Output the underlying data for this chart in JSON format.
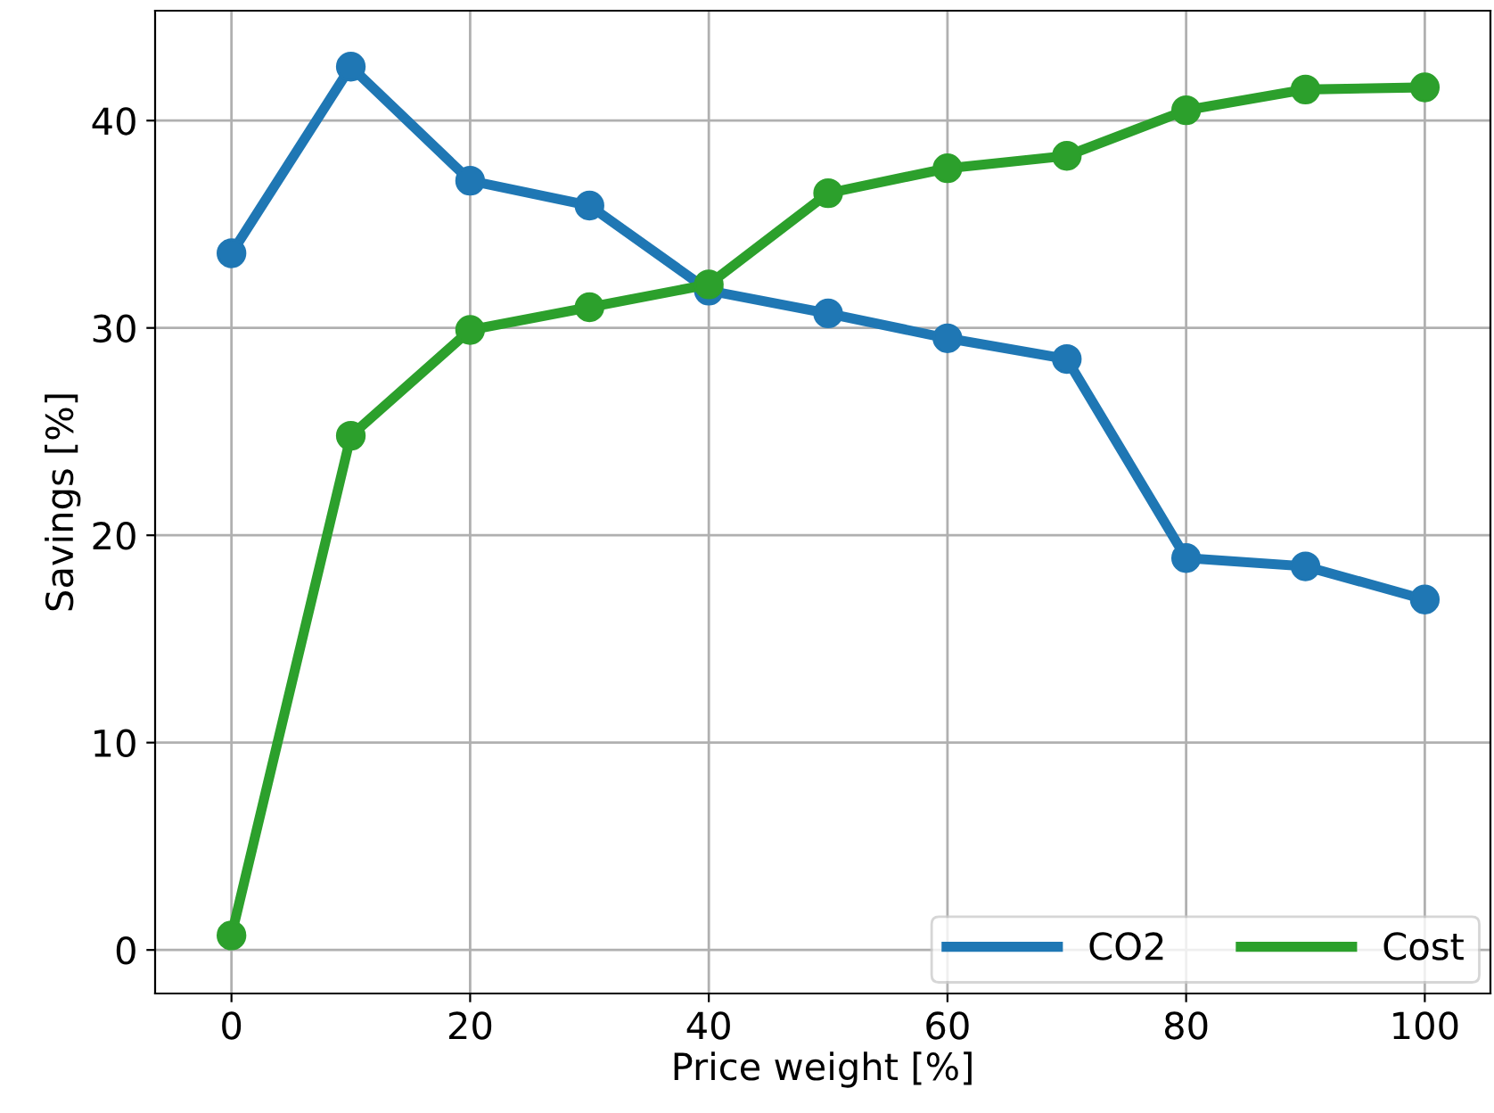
{
  "chart_data": {
    "type": "line",
    "xlabel": "Price weight [%]",
    "ylabel": "Savings [%]",
    "x": [
      0,
      10,
      20,
      30,
      40,
      50,
      60,
      70,
      80,
      90,
      100
    ],
    "series": [
      {
        "name": "CO2",
        "color": "#1f77b4",
        "values": [
          33.6,
          42.6,
          37.1,
          35.9,
          31.8,
          30.7,
          29.5,
          28.5,
          18.9,
          18.5,
          16.9
        ]
      },
      {
        "name": "Cost",
        "color": "#2ca02c",
        "values": [
          0.7,
          24.8,
          29.9,
          31.0,
          32.1,
          36.5,
          37.7,
          38.3,
          40.5,
          41.5,
          41.6
        ]
      }
    ],
    "xlim": [
      -6.4,
      105.5
    ],
    "ylim": [
      -2.1,
      45.3
    ],
    "xticks": [
      0,
      20,
      40,
      60,
      80,
      100
    ],
    "yticks": [
      0,
      10,
      20,
      30,
      40
    ],
    "grid": true,
    "legend": "bottom right",
    "marker": "circle",
    "line_style": "solid"
  }
}
